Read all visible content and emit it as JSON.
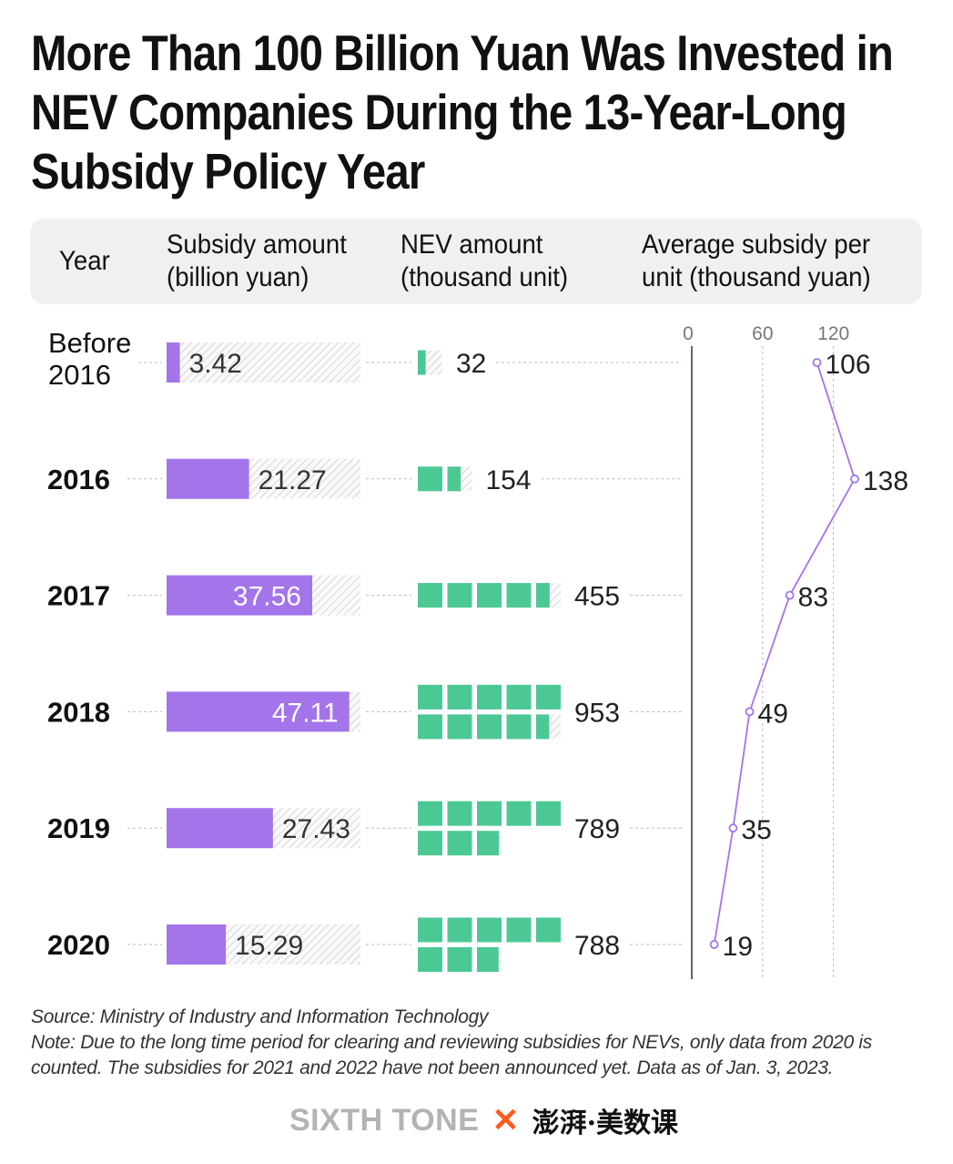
{
  "title": "More Than 100 Billion Yuan Was Invested in NEV Companies During the 13-Year-Long Subsidy Policy Year",
  "header": {
    "year": "Year",
    "subsidy": [
      "Subsidy amount",
      "(billion yuan)"
    ],
    "nev": [
      "NEV amount",
      "(thousand unit)"
    ],
    "avg": [
      "Average subsidy per",
      "unit (thousand yuan)"
    ]
  },
  "chart_data": {
    "type": "table",
    "categories": [
      "Before 2016",
      "2016",
      "2017",
      "2018",
      "2019",
      "2020"
    ],
    "series": [
      {
        "name": "Subsidy amount (billion yuan)",
        "type": "bar",
        "values": [
          3.42,
          21.27,
          37.56,
          47.11,
          27.43,
          15.29
        ],
        "max": 50
      },
      {
        "name": "NEV amount (thousand unit)",
        "type": "pictogram",
        "values": [
          32,
          154,
          455,
          953,
          789,
          788
        ],
        "unit_per_square": 100
      },
      {
        "name": "Average subsidy per unit (thousand yuan)",
        "type": "line",
        "values": [
          106,
          138,
          83,
          49,
          35,
          19
        ],
        "xlim": [
          0,
          150
        ],
        "ticks": [
          0,
          60,
          120
        ]
      }
    ]
  },
  "colors": {
    "subsidy": "#a374ea",
    "nev": "#4cc895",
    "line": "#a374ea",
    "header_bg": "#f0f0f0"
  },
  "notes": {
    "source": "Source: Ministry of Industry and Information Technology",
    "note": "Note: Due to the long time period for clearing and reviewing subsidies for NEVs, only data from 2020 is counted. The subsidies for 2021 and 2022 have not been announced yet. Data as of Jan. 3, 2023."
  },
  "logo": {
    "left": "SIXTH TONE",
    "cross": "✕",
    "right": "澎湃·美数课"
  }
}
